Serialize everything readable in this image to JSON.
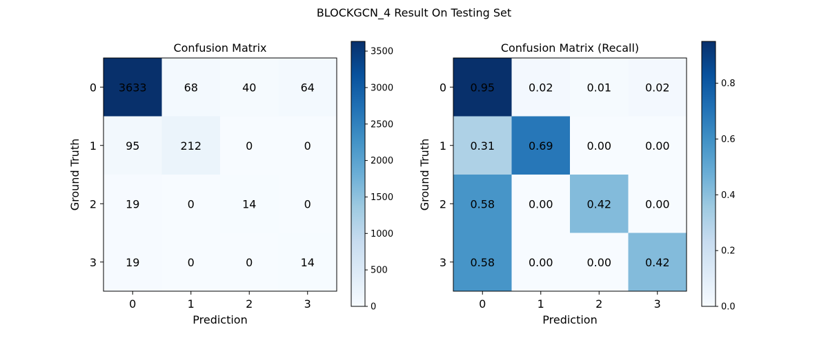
{
  "figure": {
    "suptitle": "BLOCKGCN_4 Result On Testing Set"
  },
  "chart_data": [
    {
      "type": "heatmap",
      "title": "Confusion Matrix",
      "xlabel": "Prediction",
      "ylabel": "Ground Truth",
      "x_categories": [
        "0",
        "1",
        "2",
        "3"
      ],
      "y_categories": [
        "0",
        "1",
        "2",
        "3"
      ],
      "values": [
        [
          3633,
          68,
          40,
          64
        ],
        [
          95,
          212,
          0,
          0
        ],
        [
          19,
          0,
          14,
          0
        ],
        [
          19,
          0,
          0,
          14
        ]
      ],
      "cell_labels": [
        [
          "3633",
          "68",
          "40",
          "64"
        ],
        [
          "95",
          "212",
          "0",
          "0"
        ],
        [
          "19",
          "0",
          "14",
          "0"
        ],
        [
          "19",
          "0",
          "0",
          "14"
        ]
      ],
      "colormap": "Blues",
      "vmin": 0,
      "vmax": 3633,
      "colorbar_ticks": [
        0,
        500,
        1000,
        1500,
        2000,
        2500,
        3000,
        3500
      ],
      "colorbar_tick_labels": [
        "0",
        "500",
        "1000",
        "1500",
        "2000",
        "2500",
        "3000",
        "3500"
      ]
    },
    {
      "type": "heatmap",
      "title": "Confusion Matrix (Recall)",
      "xlabel": "Prediction",
      "ylabel": "Ground Truth",
      "x_categories": [
        "0",
        "1",
        "2",
        "3"
      ],
      "y_categories": [
        "0",
        "1",
        "2",
        "3"
      ],
      "values": [
        [
          0.95,
          0.02,
          0.01,
          0.02
        ],
        [
          0.31,
          0.69,
          0.0,
          0.0
        ],
        [
          0.58,
          0.0,
          0.42,
          0.0
        ],
        [
          0.58,
          0.0,
          0.0,
          0.42
        ]
      ],
      "cell_labels": [
        [
          "0.95",
          "0.02",
          "0.01",
          "0.02"
        ],
        [
          "0.31",
          "0.69",
          "0.00",
          "0.00"
        ],
        [
          "0.58",
          "0.00",
          "0.42",
          "0.00"
        ],
        [
          "0.58",
          "0.00",
          "0.00",
          "0.42"
        ]
      ],
      "colormap": "Blues",
      "vmin": 0,
      "vmax": 0.95,
      "colorbar_ticks": [
        0,
        0.2,
        0.4,
        0.6,
        0.8
      ],
      "colorbar_tick_labels": [
        "0.0",
        "0.2",
        "0.4",
        "0.6",
        "0.8"
      ]
    }
  ]
}
